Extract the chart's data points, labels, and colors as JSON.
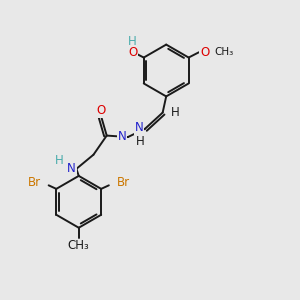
{
  "bg_color": "#e8e8e8",
  "bond_color": "#1a1a1a",
  "bond_lw": 1.4,
  "atom_colors": {
    "O": "#dd0000",
    "N": "#2222cc",
    "Br": "#cc7700",
    "H_teal": "#4aacac",
    "C": "#1a1a1a"
  },
  "font_size": 8.5,
  "fig_size": [
    3.0,
    3.0
  ],
  "dpi": 100,
  "xlim": [
    0,
    10
  ],
  "ylim": [
    0,
    10
  ]
}
